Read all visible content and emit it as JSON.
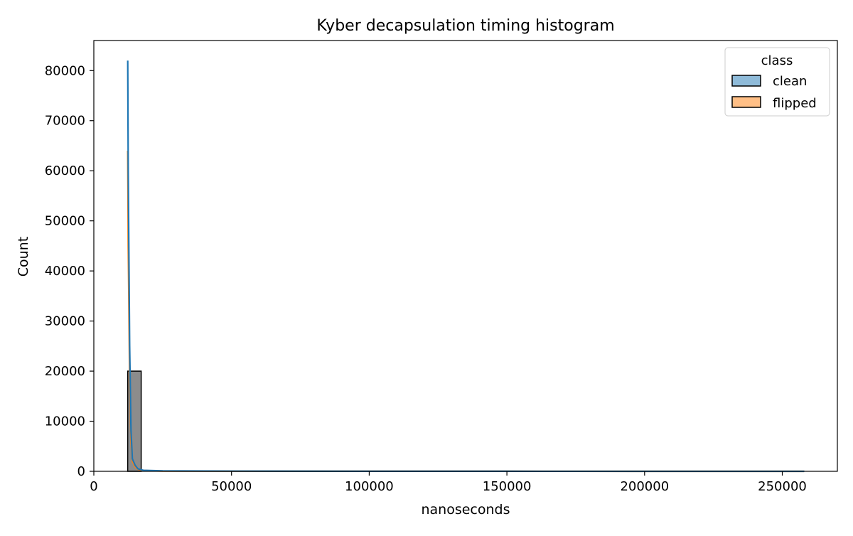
{
  "chart_data": {
    "type": "bar",
    "title": "Kyber decapsulation timing histogram",
    "xlabel": "nanoseconds",
    "ylabel": "Count",
    "xlim": [
      0,
      270000
    ],
    "ylim": [
      0,
      86000
    ],
    "x_ticks": [
      0,
      50000,
      100000,
      150000,
      200000,
      250000
    ],
    "y_ticks": [
      0,
      10000,
      20000,
      30000,
      40000,
      50000,
      60000,
      70000,
      80000
    ],
    "x_tick_labels": [
      "0",
      "50000",
      "100000",
      "150000",
      "200000",
      "250000"
    ],
    "y_tick_labels": [
      "0",
      "10000",
      "20000",
      "30000",
      "40000",
      "50000",
      "60000",
      "70000",
      "80000"
    ],
    "legend": {
      "title": "class",
      "placement": "top-right",
      "entries": [
        {
          "label": "clean",
          "color": "#1f77b4"
        },
        {
          "label": "flipped",
          "color": "#ff7f0e"
        }
      ]
    },
    "bins": [
      {
        "x0": 12300,
        "x1": 17200,
        "value": 20000,
        "overlap_color": "#8c8c8c"
      }
    ],
    "series": [
      {
        "name": "clean",
        "color": "#1f77b4",
        "kind": "kde",
        "x": [
          12300,
          12500,
          13000,
          13500,
          14000,
          15000,
          16000,
          18000,
          25000,
          50000,
          100000,
          150000,
          200000,
          258000
        ],
        "values": [
          82000,
          60000,
          25000,
          8000,
          2500,
          1200,
          500,
          200,
          80,
          40,
          20,
          10,
          5,
          0
        ]
      },
      {
        "name": "flipped",
        "color": "#ff7f0e",
        "kind": "kde",
        "x": [
          12300,
          12500,
          13000,
          13500,
          14000,
          15000,
          16000,
          18000,
          25000,
          50000,
          100000,
          150000,
          200000,
          258000
        ],
        "values": [
          64000,
          45000,
          18000,
          6000,
          2000,
          900,
          400,
          150,
          60,
          30,
          15,
          8,
          4,
          0
        ]
      }
    ],
    "grid": false
  }
}
